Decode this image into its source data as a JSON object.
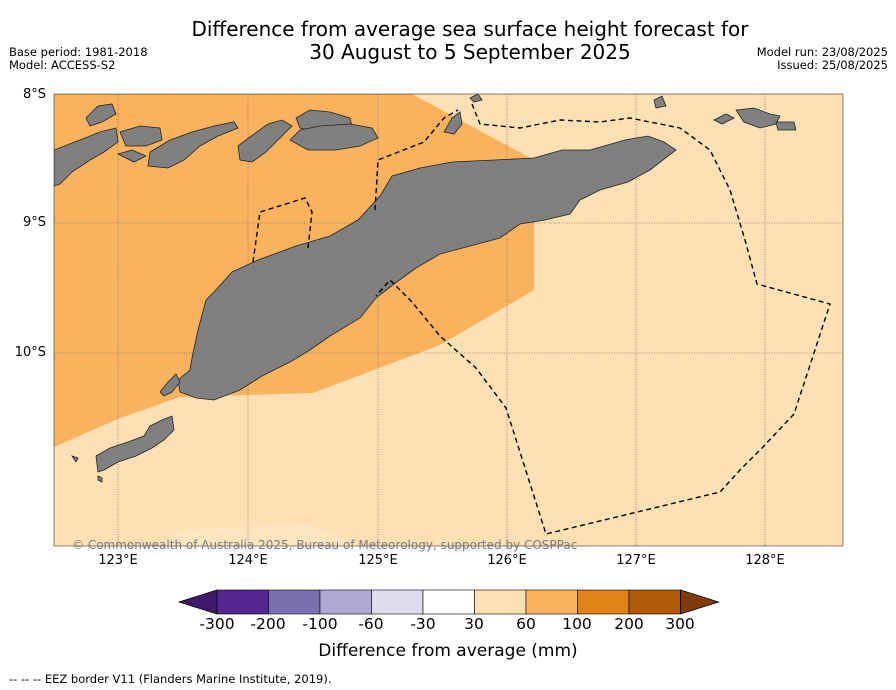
{
  "title": {
    "line1": "Difference from average sea surface height forecast for",
    "line2": "30 August to 5 September 2025"
  },
  "meta_left": {
    "base_period": "Base period: 1981-2018",
    "model": "Model: ACCESS-S2"
  },
  "meta_right": {
    "model_run": "Model run: 23/08/2025",
    "issued": "Issued: 25/08/2025"
  },
  "map": {
    "lat_labels": [
      "8°S",
      "9°S",
      "10°S"
    ],
    "lon_labels": [
      "123°E",
      "124°E",
      "125°E",
      "126°E",
      "127°E",
      "128°E"
    ],
    "colors": {
      "land": "#808080",
      "anomaly_30_60": "#fde0b4",
      "anomaly_60_100": "#f9b35f"
    },
    "copyright": "© Commonwealth of Australia 2025, Bureau of Meteorology, supported by COSPPac"
  },
  "colorbar": {
    "ticks": [
      "-300",
      "-200",
      "-100",
      "-60",
      "-30",
      "30",
      "60",
      "100",
      "200",
      "300"
    ],
    "colors": [
      "#3f1a6b",
      "#54278f",
      "#7b6fb0",
      "#aea8d2",
      "#dcdcec",
      "#ffffff",
      "#fde0b4",
      "#f9b35f",
      "#e08216",
      "#b35a08",
      "#7f3b08"
    ],
    "label": "Difference from average (mm)"
  },
  "legend": "--  --  -- EEZ border V11 (Flanders Marine Institute, 2019)."
}
